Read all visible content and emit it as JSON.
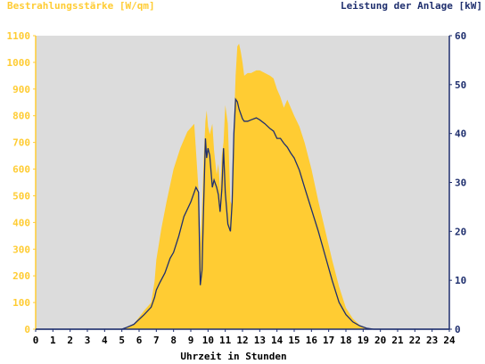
{
  "chart_data": {
    "type": "area",
    "left_axis_title": "Bestrahlungsstärke [W/qm]",
    "right_axis_title": "Leistung der Anlage [kW]",
    "xlabel": "Uhrzeit in Stunden",
    "x_ticks": [
      "0",
      "1",
      "2",
      "3",
      "4",
      "5",
      "6",
      "7",
      "8",
      "9",
      "10",
      "11",
      "12",
      "13",
      "14",
      "15",
      "16",
      "17",
      "18",
      "19",
      "20",
      "21",
      "22",
      "23",
      "24"
    ],
    "y_left_ticks": [
      "0",
      "100",
      "200",
      "300",
      "400",
      "500",
      "600",
      "700",
      "800",
      "900",
      "1000",
      "1100"
    ],
    "y_right_ticks": [
      "0",
      "10",
      "20",
      "30",
      "40",
      "50",
      "60"
    ],
    "xlim": [
      0,
      24
    ],
    "ylim_left": [
      0,
      1100
    ],
    "ylim_right": [
      0,
      60
    ],
    "grid": false,
    "colors": {
      "plot_background": "#dcdcdc",
      "irradiance_fill": "#ffcc33",
      "power_line": "#1f2f6e",
      "left_axis_text": "#ffcc33",
      "right_axis_text": "#1f2f6e",
      "x_axis_text": "#000000"
    },
    "series": [
      {
        "axis": "left",
        "style": "area",
        "x": [
          0,
          5.0,
          5.3,
          5.7,
          6.0,
          6.3,
          6.7,
          6.9,
          7.0,
          7.3,
          7.6,
          8.0,
          8.4,
          8.8,
          9.2,
          9.45,
          9.55,
          9.65,
          9.75,
          9.85,
          9.92,
          10.0,
          10.1,
          10.25,
          10.35,
          10.5,
          10.6,
          10.7,
          10.8,
          10.9,
          11.0,
          11.15,
          11.3,
          11.4,
          11.5,
          11.6,
          11.7,
          11.8,
          11.9,
          12.0,
          12.1,
          12.3,
          12.5,
          12.8,
          13.0,
          13.3,
          13.6,
          13.8,
          14.0,
          14.2,
          14.4,
          14.6,
          14.8,
          15.0,
          15.3,
          15.6,
          16.0,
          16.4,
          16.8,
          17.2,
          17.6,
          18.0,
          18.4,
          18.8,
          19.2,
          19.6,
          19.8,
          20.0,
          20.2,
          24
        ],
        "y": [
          0,
          0,
          8,
          20,
          45,
          70,
          100,
          180,
          260,
          380,
          480,
          600,
          680,
          740,
          770,
          520,
          320,
          450,
          640,
          780,
          820,
          760,
          730,
          770,
          670,
          580,
          620,
          520,
          650,
          700,
          840,
          770,
          480,
          460,
          760,
          950,
          1060,
          1070,
          1040,
          1000,
          950,
          960,
          960,
          970,
          970,
          960,
          950,
          940,
          900,
          870,
          830,
          860,
          830,
          800,
          760,
          700,
          600,
          480,
          370,
          260,
          160,
          80,
          40,
          15,
          5,
          0,
          0,
          0,
          0,
          0
        ]
      },
      {
        "axis": "right",
        "style": "line",
        "x": [
          0,
          5.0,
          5.3,
          5.7,
          6.0,
          6.3,
          6.7,
          6.9,
          7.0,
          7.2,
          7.5,
          7.8,
          8.0,
          8.3,
          8.6,
          9.0,
          9.3,
          9.45,
          9.55,
          9.65,
          9.75,
          9.85,
          9.92,
          10.0,
          10.1,
          10.25,
          10.35,
          10.5,
          10.6,
          10.7,
          10.8,
          10.9,
          11.0,
          11.15,
          11.3,
          11.4,
          11.5,
          11.6,
          11.7,
          11.8,
          11.9,
          12.0,
          12.1,
          12.3,
          12.5,
          12.8,
          13.0,
          13.3,
          13.6,
          13.8,
          14.0,
          14.2,
          14.4,
          14.6,
          14.8,
          15.0,
          15.3,
          15.6,
          16.0,
          16.4,
          16.8,
          17.2,
          17.6,
          18.0,
          18.4,
          18.8,
          19.2,
          19.6,
          19.8,
          20.0,
          20.2,
          24
        ],
        "y": [
          0,
          0,
          0.4,
          1.0,
          2.0,
          3.0,
          4.5,
          6.5,
          8.0,
          9.5,
          11.5,
          14.5,
          15.7,
          19.0,
          23.0,
          26.0,
          29.0,
          28.0,
          9.0,
          12.0,
          26.0,
          39.0,
          35.0,
          37.0,
          35.5,
          29.0,
          30.5,
          29.0,
          27.5,
          24.0,
          28.5,
          37.0,
          28.0,
          21.5,
          20.0,
          26.0,
          40.0,
          47.0,
          46.5,
          45.0,
          44.0,
          43.0,
          42.5,
          42.5,
          42.8,
          43.2,
          42.8,
          42.0,
          41.0,
          40.5,
          39.0,
          39.0,
          38.0,
          37.2,
          36.0,
          35.0,
          32.5,
          29.0,
          24.5,
          20.0,
          15.0,
          10.0,
          5.5,
          3.0,
          1.5,
          0.7,
          0.2,
          0,
          0,
          0,
          0,
          0
        ]
      }
    ]
  }
}
